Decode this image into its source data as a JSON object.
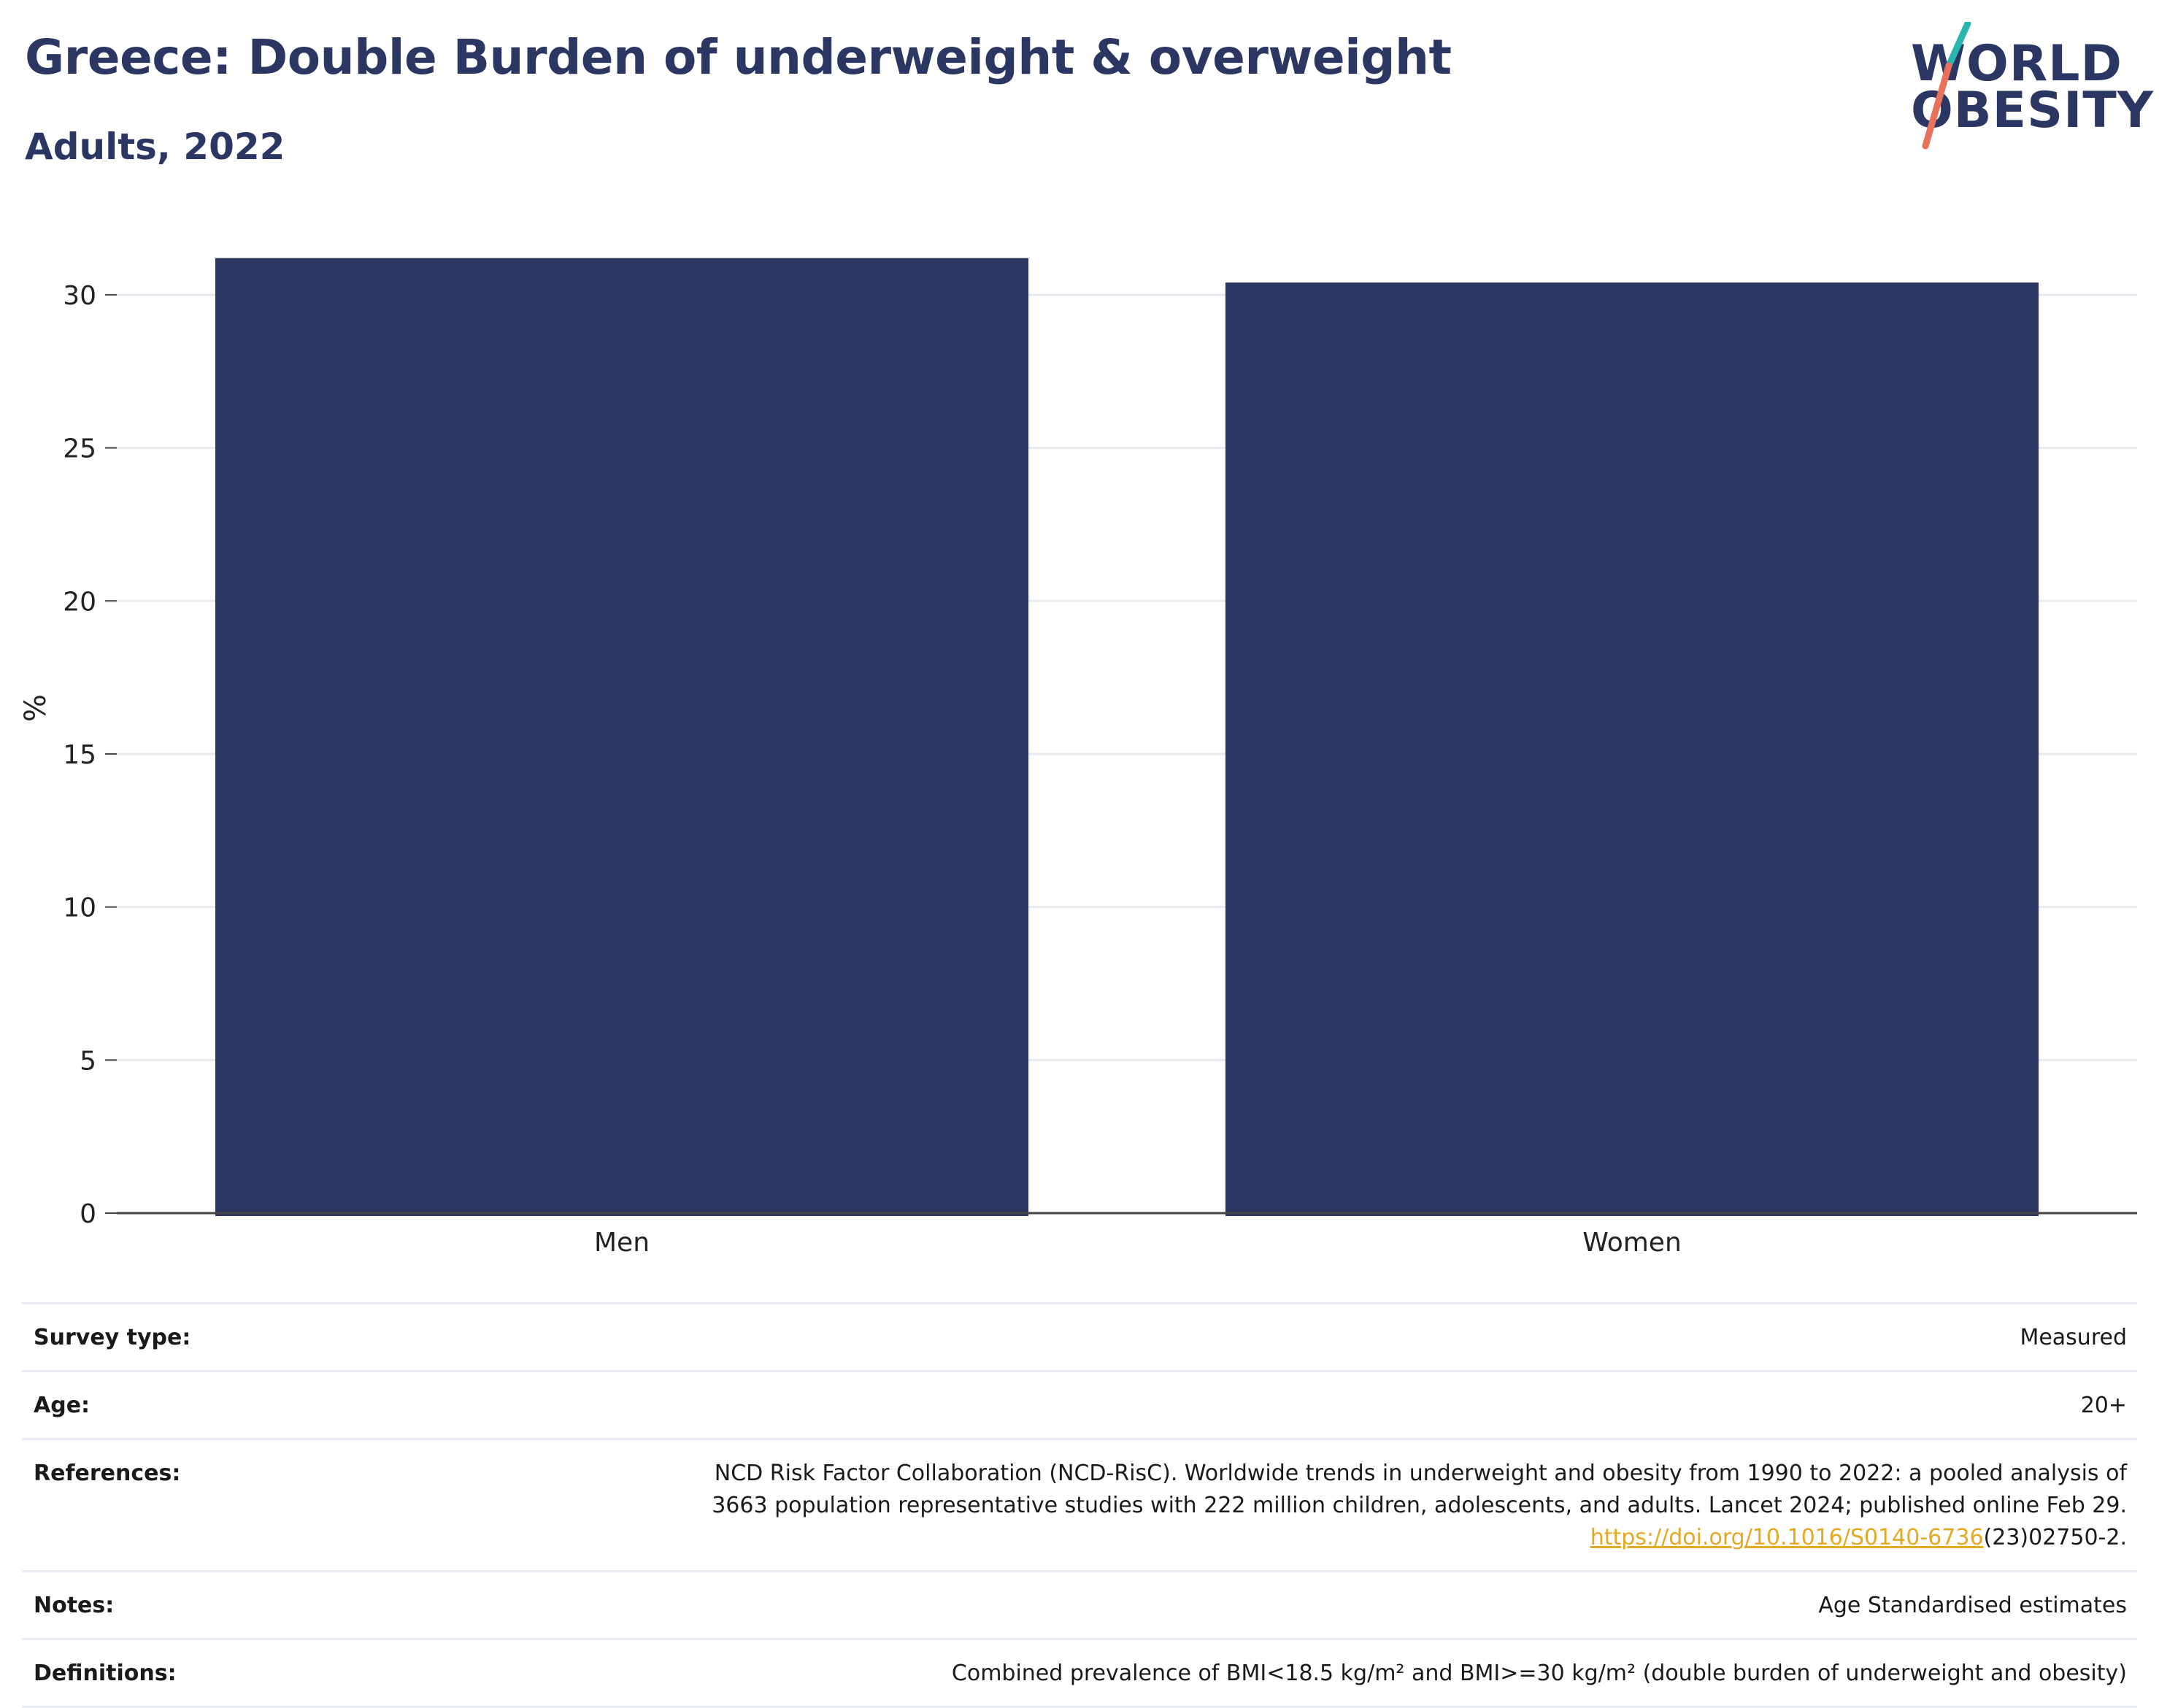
{
  "header": {
    "title": "Greece: Double Burden of underweight & overweight",
    "subtitle": "Adults, 2022"
  },
  "logo": {
    "line1": "WORLD",
    "line2": "OBESITY",
    "colors": {
      "text": "#2b3663",
      "slash_top": "#2bb5b0",
      "slash_bottom": "#e8715c"
    }
  },
  "chart_data": {
    "type": "bar",
    "categories": [
      "Men",
      "Women"
    ],
    "values": [
      31.2,
      30.4
    ],
    "title": "Greece: Double Burden of underweight & overweight",
    "subtitle": "Adults, 2022",
    "xlabel": "",
    "ylabel": "%",
    "ylim": [
      0,
      32
    ],
    "yticks": [
      0,
      5,
      10,
      15,
      20,
      25,
      30
    ],
    "grid": true,
    "bar_color": "#2b3663"
  },
  "metadata": {
    "rows": [
      {
        "label": "Survey type:",
        "value": "Measured"
      },
      {
        "label": "Age:",
        "value": "20+"
      },
      {
        "label": "References:",
        "line1": "NCD Risk Factor Collaboration (NCD-RisC). Worldwide trends in underweight and obesity from 1990 to 2022: a pooled analysis of",
        "line2": "3663 population representative studies with 222 million children, adolescents, and adults. Lancet 2024; published online Feb 29.",
        "link": "https://doi.org/10.1016/S0140-6736",
        "link_suffix": "(23)02750-2."
      },
      {
        "label": "Notes:",
        "value": "Age Standardised estimates"
      },
      {
        "label": "Definitions:",
        "value": "Combined prevalence of BMI<18.5 kg/m² and BMI>=30 kg/m² (double burden of underweight and obesity)"
      }
    ]
  }
}
